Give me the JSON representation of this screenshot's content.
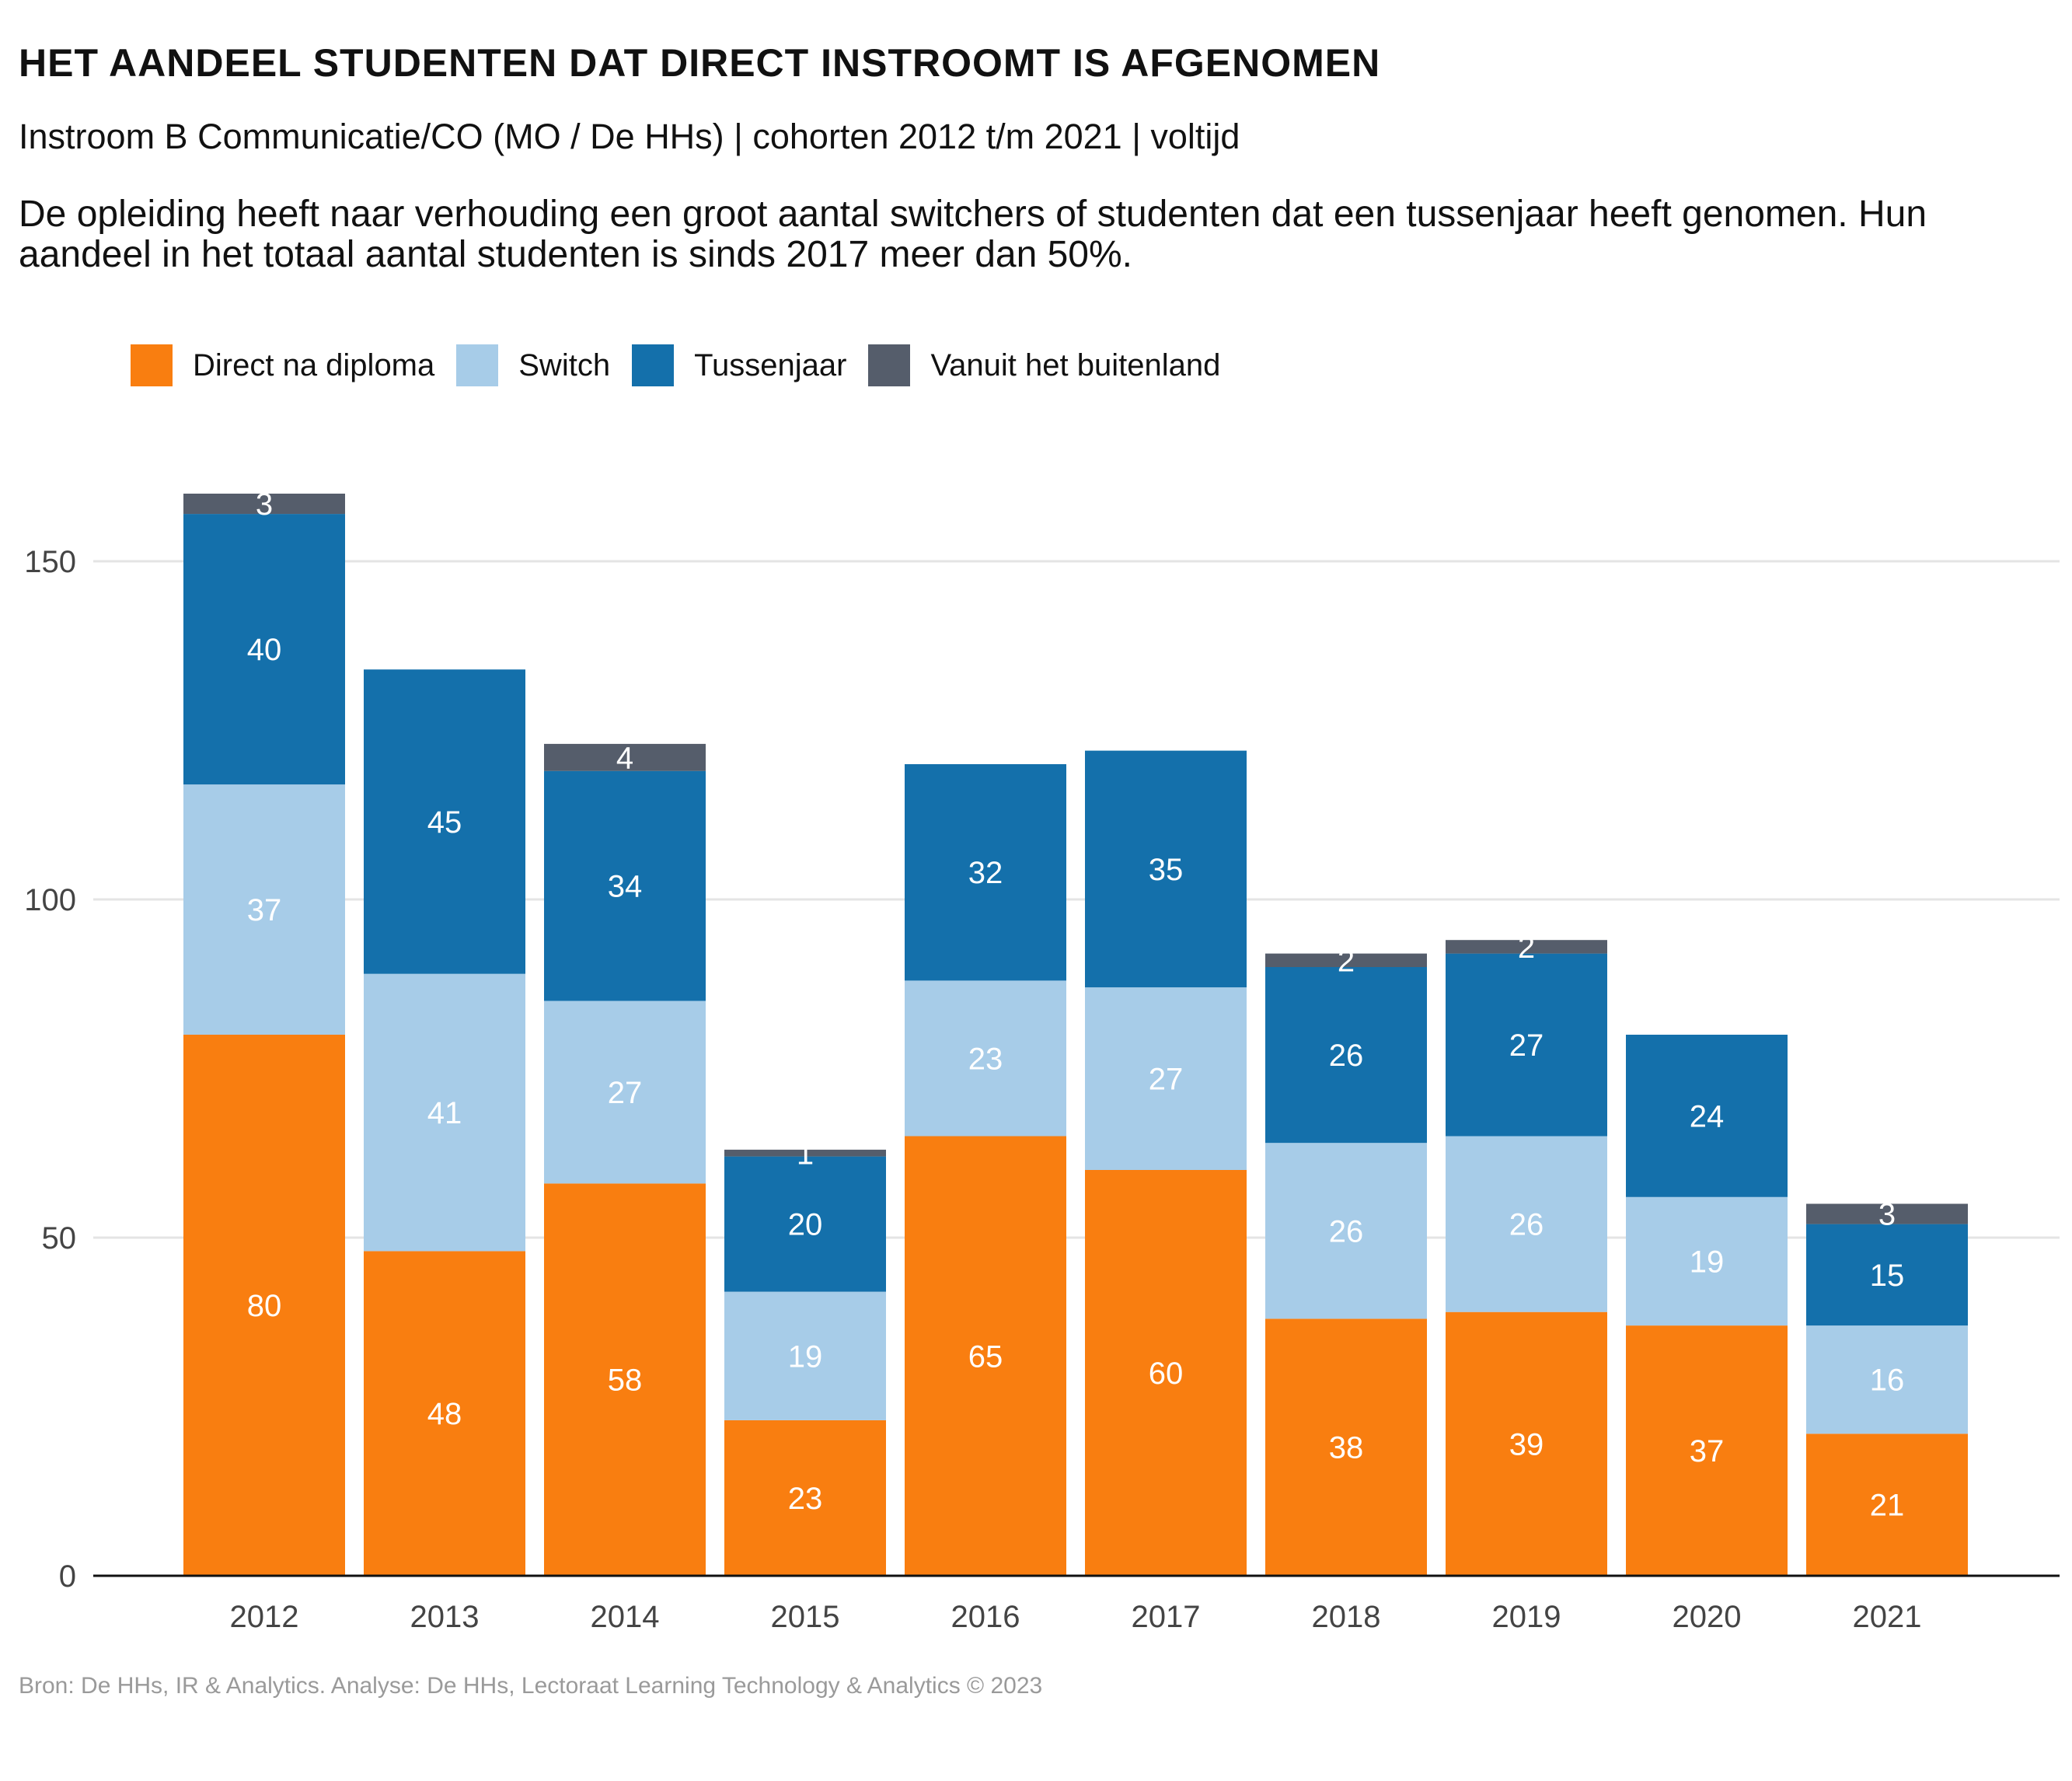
{
  "title": "HET AANDEEL STUDENTEN DAT DIRECT INSTROOMT IS AFGENOMEN",
  "subtitle": "Instroom B Communicatie/CO (MO / De HHs) | cohorten 2012 t/m 2021 | voltijd",
  "description": "De opleiding heeft naar verhouding een groot aantal switchers of studenten dat een tussenjaar heeft genomen. Hun aandeel in het totaal aantal studenten is sinds 2017 meer dan 50%.",
  "source": "Bron: De HHs, IR & Analytics. Analyse: De HHs, Lectoraat Learning Technology & Analytics © 2023",
  "chart_data": {
    "type": "bar",
    "stacked": true,
    "categories": [
      "2012",
      "2013",
      "2014",
      "2015",
      "2016",
      "2017",
      "2018",
      "2019",
      "2020",
      "2021"
    ],
    "series": [
      {
        "name": "Direct na diploma",
        "color": "#f97e10",
        "values": [
          80,
          48,
          58,
          23,
          65,
          60,
          38,
          39,
          37,
          21
        ]
      },
      {
        "name": "Switch",
        "color": "#a7cce8",
        "values": [
          37,
          41,
          27,
          19,
          23,
          27,
          26,
          26,
          19,
          16
        ]
      },
      {
        "name": "Tussenjaar",
        "color": "#1470ab",
        "values": [
          40,
          45,
          34,
          20,
          32,
          35,
          26,
          27,
          24,
          15
        ]
      },
      {
        "name": "Vanuit het buitenland",
        "color": "#555d6b",
        "values": [
          3,
          0,
          4,
          1,
          0,
          0,
          2,
          2,
          0,
          3
        ]
      }
    ],
    "yticks": [
      0,
      50,
      100,
      150
    ],
    "ylim": [
      0,
      160
    ],
    "xlabel": "",
    "ylabel": "",
    "grid": true,
    "legend_position": "top-left"
  }
}
